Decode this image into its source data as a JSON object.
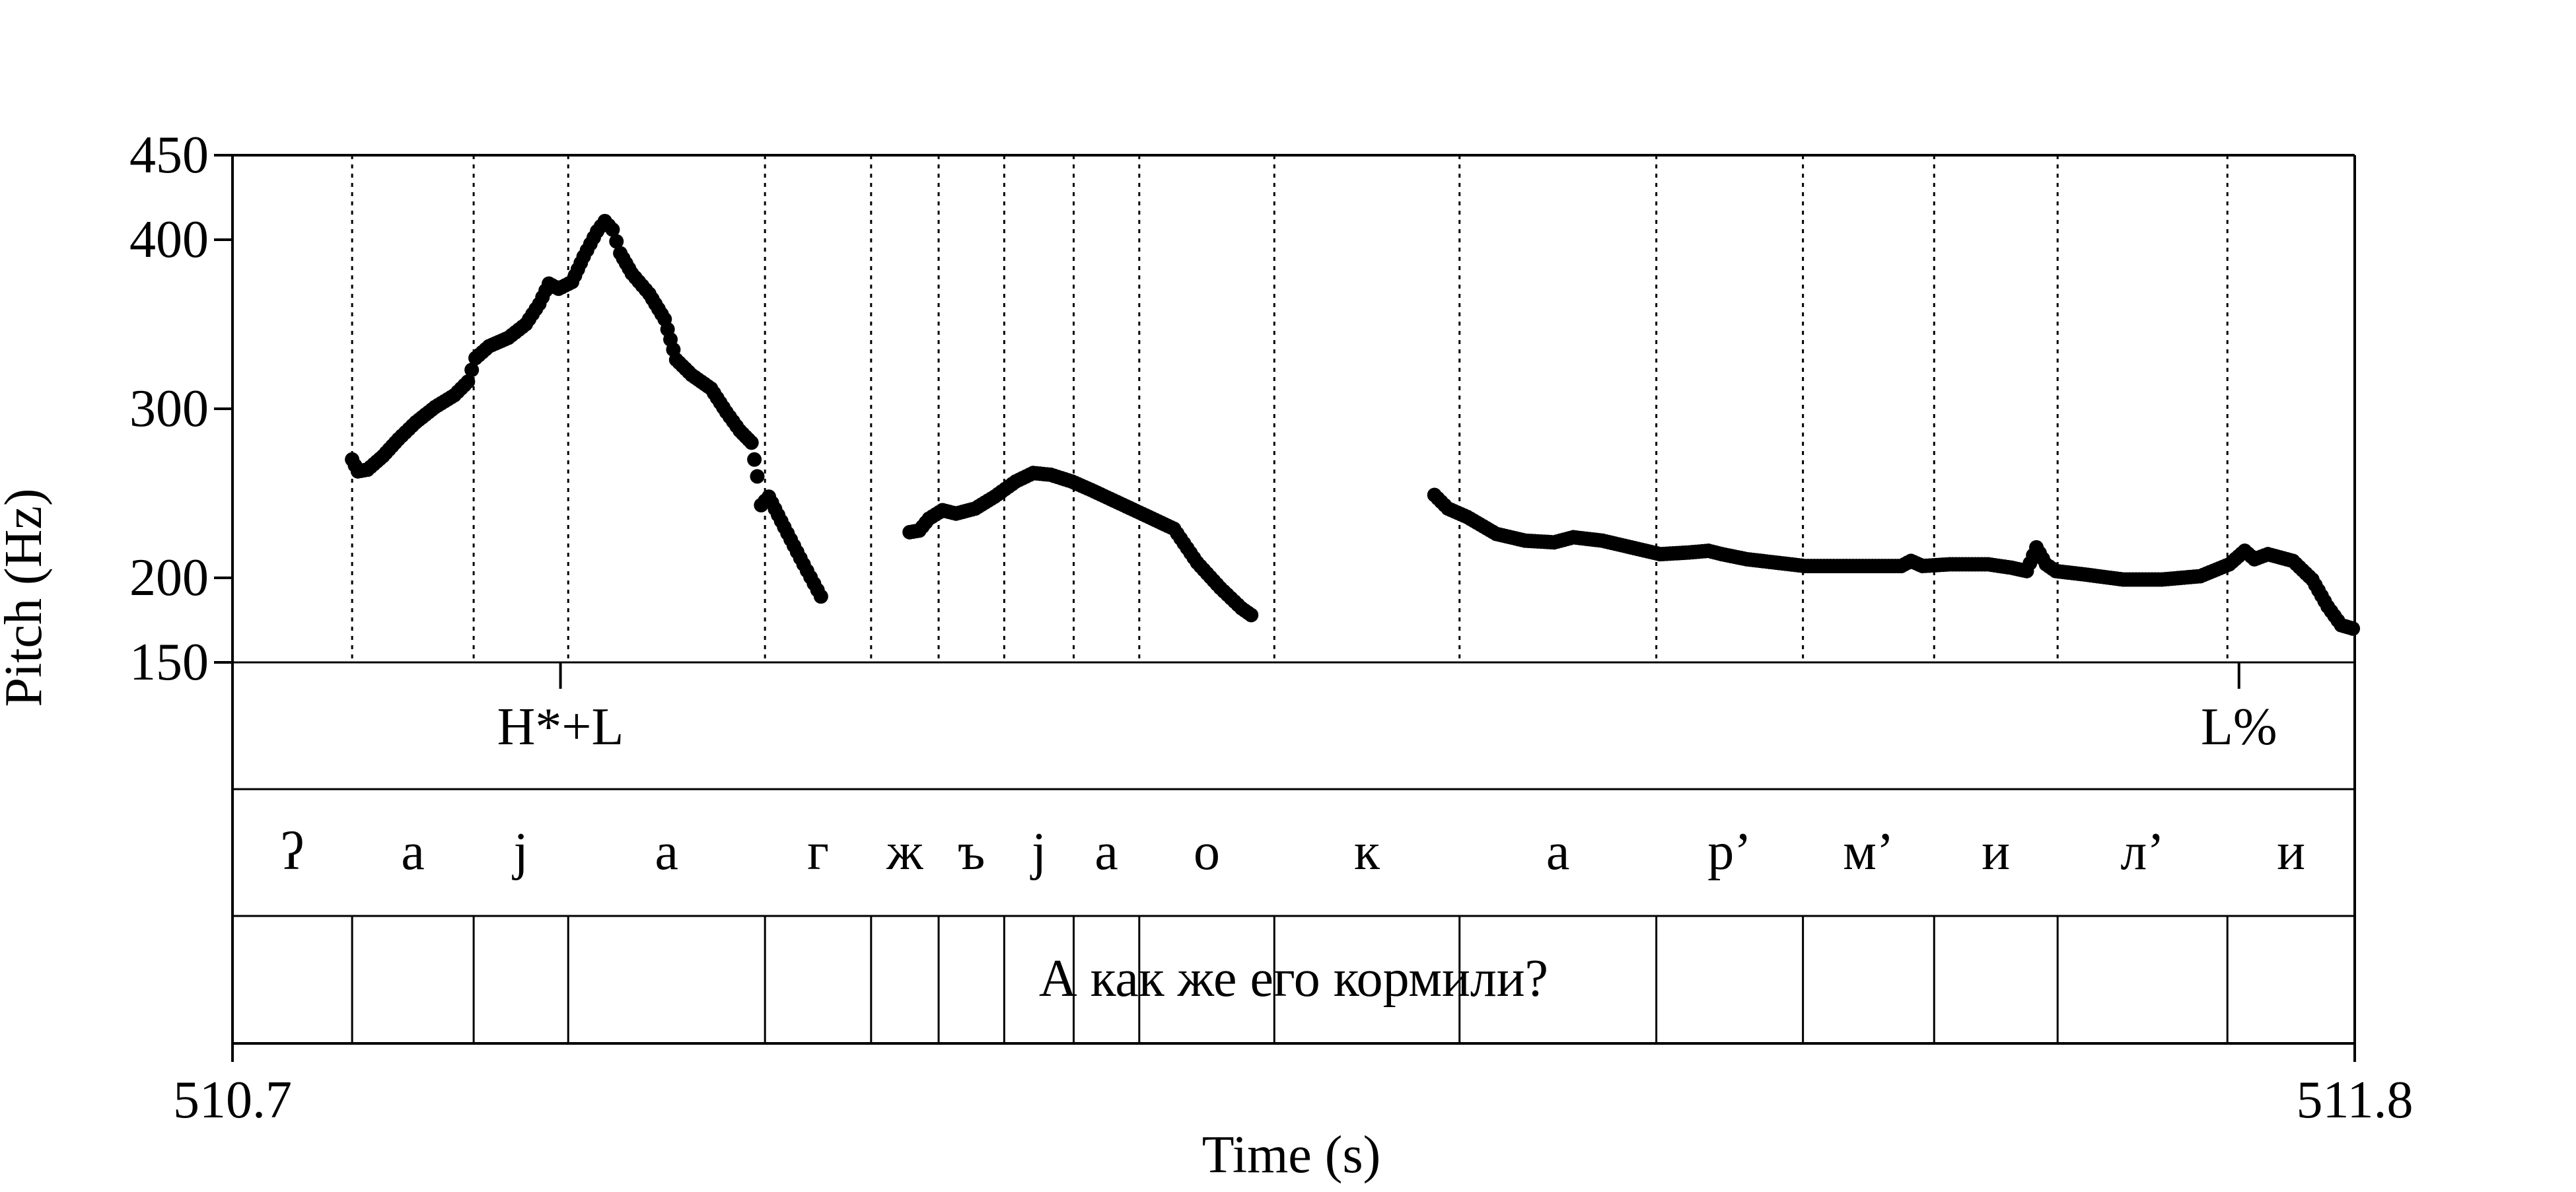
{
  "chart_data": {
    "type": "scatter",
    "title": "",
    "xlabel": "Time (s)",
    "ylabel": "Pitch (Hz)",
    "xlim": [
      510.7,
      511.8
    ],
    "ylim": [
      150,
      450
    ],
    "y_ticks": [
      "150",
      "200",
      "300",
      "400",
      "450"
    ],
    "y_tick_values": [
      150,
      200,
      300,
      400,
      450
    ],
    "x_ticks": [
      "510.7",
      "511.8"
    ],
    "x_tick_values": [
      510.7,
      511.8
    ],
    "grid": false,
    "series": [
      {
        "values": [
          [
            510.762,
            270
          ],
          [
            510.765,
            263
          ],
          [
            510.77,
            264
          ],
          [
            510.778,
            272
          ],
          [
            510.786,
            282
          ],
          [
            510.795,
            292
          ],
          [
            510.805,
            301
          ],
          [
            510.815,
            308
          ],
          [
            510.822,
            316
          ],
          [
            510.826,
            330
          ],
          [
            510.833,
            337
          ],
          [
            510.843,
            342
          ],
          [
            510.852,
            350
          ],
          [
            510.859,
            362
          ],
          [
            510.864,
            374
          ],
          [
            510.869,
            371
          ],
          [
            510.876,
            375
          ],
          [
            510.882,
            390
          ],
          [
            510.889,
            405
          ],
          [
            510.893,
            411
          ],
          [
            510.897,
            406
          ],
          [
            510.901,
            392
          ],
          [
            510.907,
            380
          ],
          [
            510.916,
            368
          ],
          [
            510.924,
            353
          ],
          [
            510.93,
            329
          ],
          [
            510.938,
            320
          ],
          [
            510.948,
            312
          ],
          [
            510.956,
            298
          ],
          [
            510.963,
            287
          ],
          [
            510.969,
            280
          ],
          [
            510.972,
            260
          ],
          [
            510.974,
            243
          ],
          [
            510.978,
            248
          ],
          [
            510.986,
            230
          ],
          [
            510.996,
            208
          ],
          [
            511.005,
            189
          ]
        ]
      },
      {
        "values": [
          [
            511.051,
            227
          ],
          [
            511.056,
            228
          ],
          [
            511.061,
            235
          ],
          [
            511.068,
            240
          ],
          [
            511.075,
            238
          ],
          [
            511.085,
            241
          ],
          [
            511.095,
            248
          ],
          [
            511.106,
            257
          ],
          [
            511.115,
            262
          ],
          [
            511.124,
            261
          ],
          [
            511.135,
            257
          ],
          [
            511.145,
            252
          ],
          [
            511.16,
            244
          ],
          [
            511.175,
            236
          ],
          [
            511.188,
            229
          ],
          [
            511.2,
            209
          ],
          [
            511.212,
            194
          ],
          [
            511.223,
            182
          ],
          [
            511.228,
            178
          ]
        ]
      },
      {
        "values": [
          [
            511.323,
            249
          ],
          [
            511.33,
            241
          ],
          [
            511.34,
            236
          ],
          [
            511.355,
            226
          ],
          [
            511.37,
            222
          ],
          [
            511.385,
            221
          ],
          [
            511.395,
            224
          ],
          [
            511.41,
            222
          ],
          [
            511.425,
            218
          ],
          [
            511.44,
            214
          ],
          [
            511.455,
            215
          ],
          [
            511.465,
            216
          ],
          [
            511.472,
            214
          ],
          [
            511.485,
            211
          ],
          [
            511.5,
            209
          ],
          [
            511.515,
            207
          ],
          [
            511.535,
            207
          ],
          [
            511.555,
            207
          ],
          [
            511.565,
            207
          ],
          [
            511.57,
            210
          ],
          [
            511.576,
            207
          ],
          [
            511.59,
            208
          ],
          [
            511.61,
            208
          ],
          [
            511.622,
            206
          ],
          [
            511.63,
            204
          ],
          [
            511.635,
            218
          ],
          [
            511.64,
            208
          ],
          [
            511.645,
            204
          ],
          [
            511.66,
            202
          ],
          [
            511.68,
            199
          ],
          [
            511.7,
            199
          ],
          [
            511.72,
            201
          ],
          [
            511.735,
            208
          ],
          [
            511.743,
            216
          ],
          [
            511.748,
            211
          ],
          [
            511.755,
            214
          ],
          [
            511.768,
            210
          ],
          [
            511.778,
            199
          ],
          [
            511.786,
            183
          ],
          [
            511.793,
            172
          ],
          [
            511.799,
            170
          ]
        ]
      }
    ],
    "tone_tier": {
      "labels": [
        {
          "text": "H*+L",
          "time": 510.87
        },
        {
          "text": "L%",
          "time": 511.74
        }
      ]
    },
    "phone_tier": {
      "boundaries": [
        510.7,
        510.762,
        510.825,
        510.874,
        510.976,
        511.031,
        511.066,
        511.1,
        511.136,
        511.17,
        511.24,
        511.336,
        511.438,
        511.514,
        511.582,
        511.646,
        511.734,
        511.8
      ],
      "labels": [
        "ʔ",
        "а",
        "j",
        "а",
        "г",
        "ж",
        "ъ",
        "j",
        "а",
        "о",
        "к",
        "а",
        "р’",
        "м’",
        "и",
        "л’",
        "и"
      ]
    },
    "word_tier": {
      "text": "А как же его кормили?"
    }
  }
}
